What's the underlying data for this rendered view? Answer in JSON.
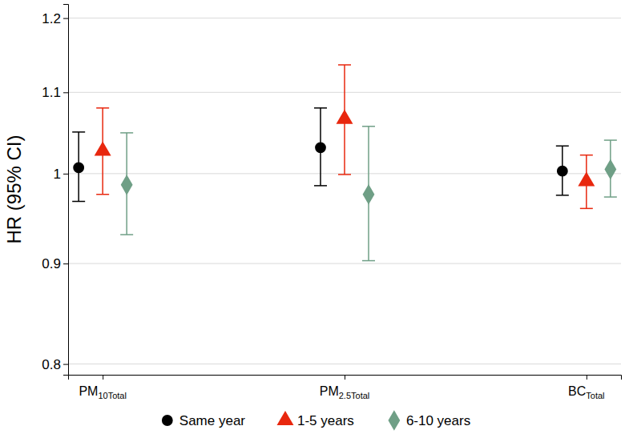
{
  "chart_data": {
    "type": "errorbar",
    "y_label": "HR (95% CI)",
    "categories": [
      "PM10Total",
      "PM2.5Total",
      "BCTotal"
    ],
    "series": [
      {
        "name": "Same year",
        "color": "#000000",
        "marker": "circle",
        "values": [
          1.007,
          1.031,
          1.003
        ],
        "lower": [
          0.968,
          0.986,
          0.975
        ],
        "upper": [
          1.05,
          1.08,
          1.033
        ]
      },
      {
        "name": "1-5 years",
        "color": "#e8270e",
        "marker": "triangle",
        "values": [
          1.027,
          1.066,
          0.991
        ],
        "lower": [
          0.976,
          0.999,
          0.96
        ],
        "upper": [
          1.08,
          1.136,
          1.022
        ]
      },
      {
        "name": "6-10 years",
        "color": "#6f9f86",
        "marker": "diamond",
        "values": [
          0.987,
          0.976,
          1.005
        ],
        "lower": [
          0.931,
          0.903,
          0.973
        ],
        "upper": [
          1.049,
          1.057,
          1.04
        ]
      }
    ],
    "ylim": [
      0.79,
      1.22
    ],
    "yticks": [
      0.8,
      0.9,
      1,
      1.1,
      1.2
    ],
    "log": "y",
    "grid": true,
    "legend": "bottom"
  }
}
